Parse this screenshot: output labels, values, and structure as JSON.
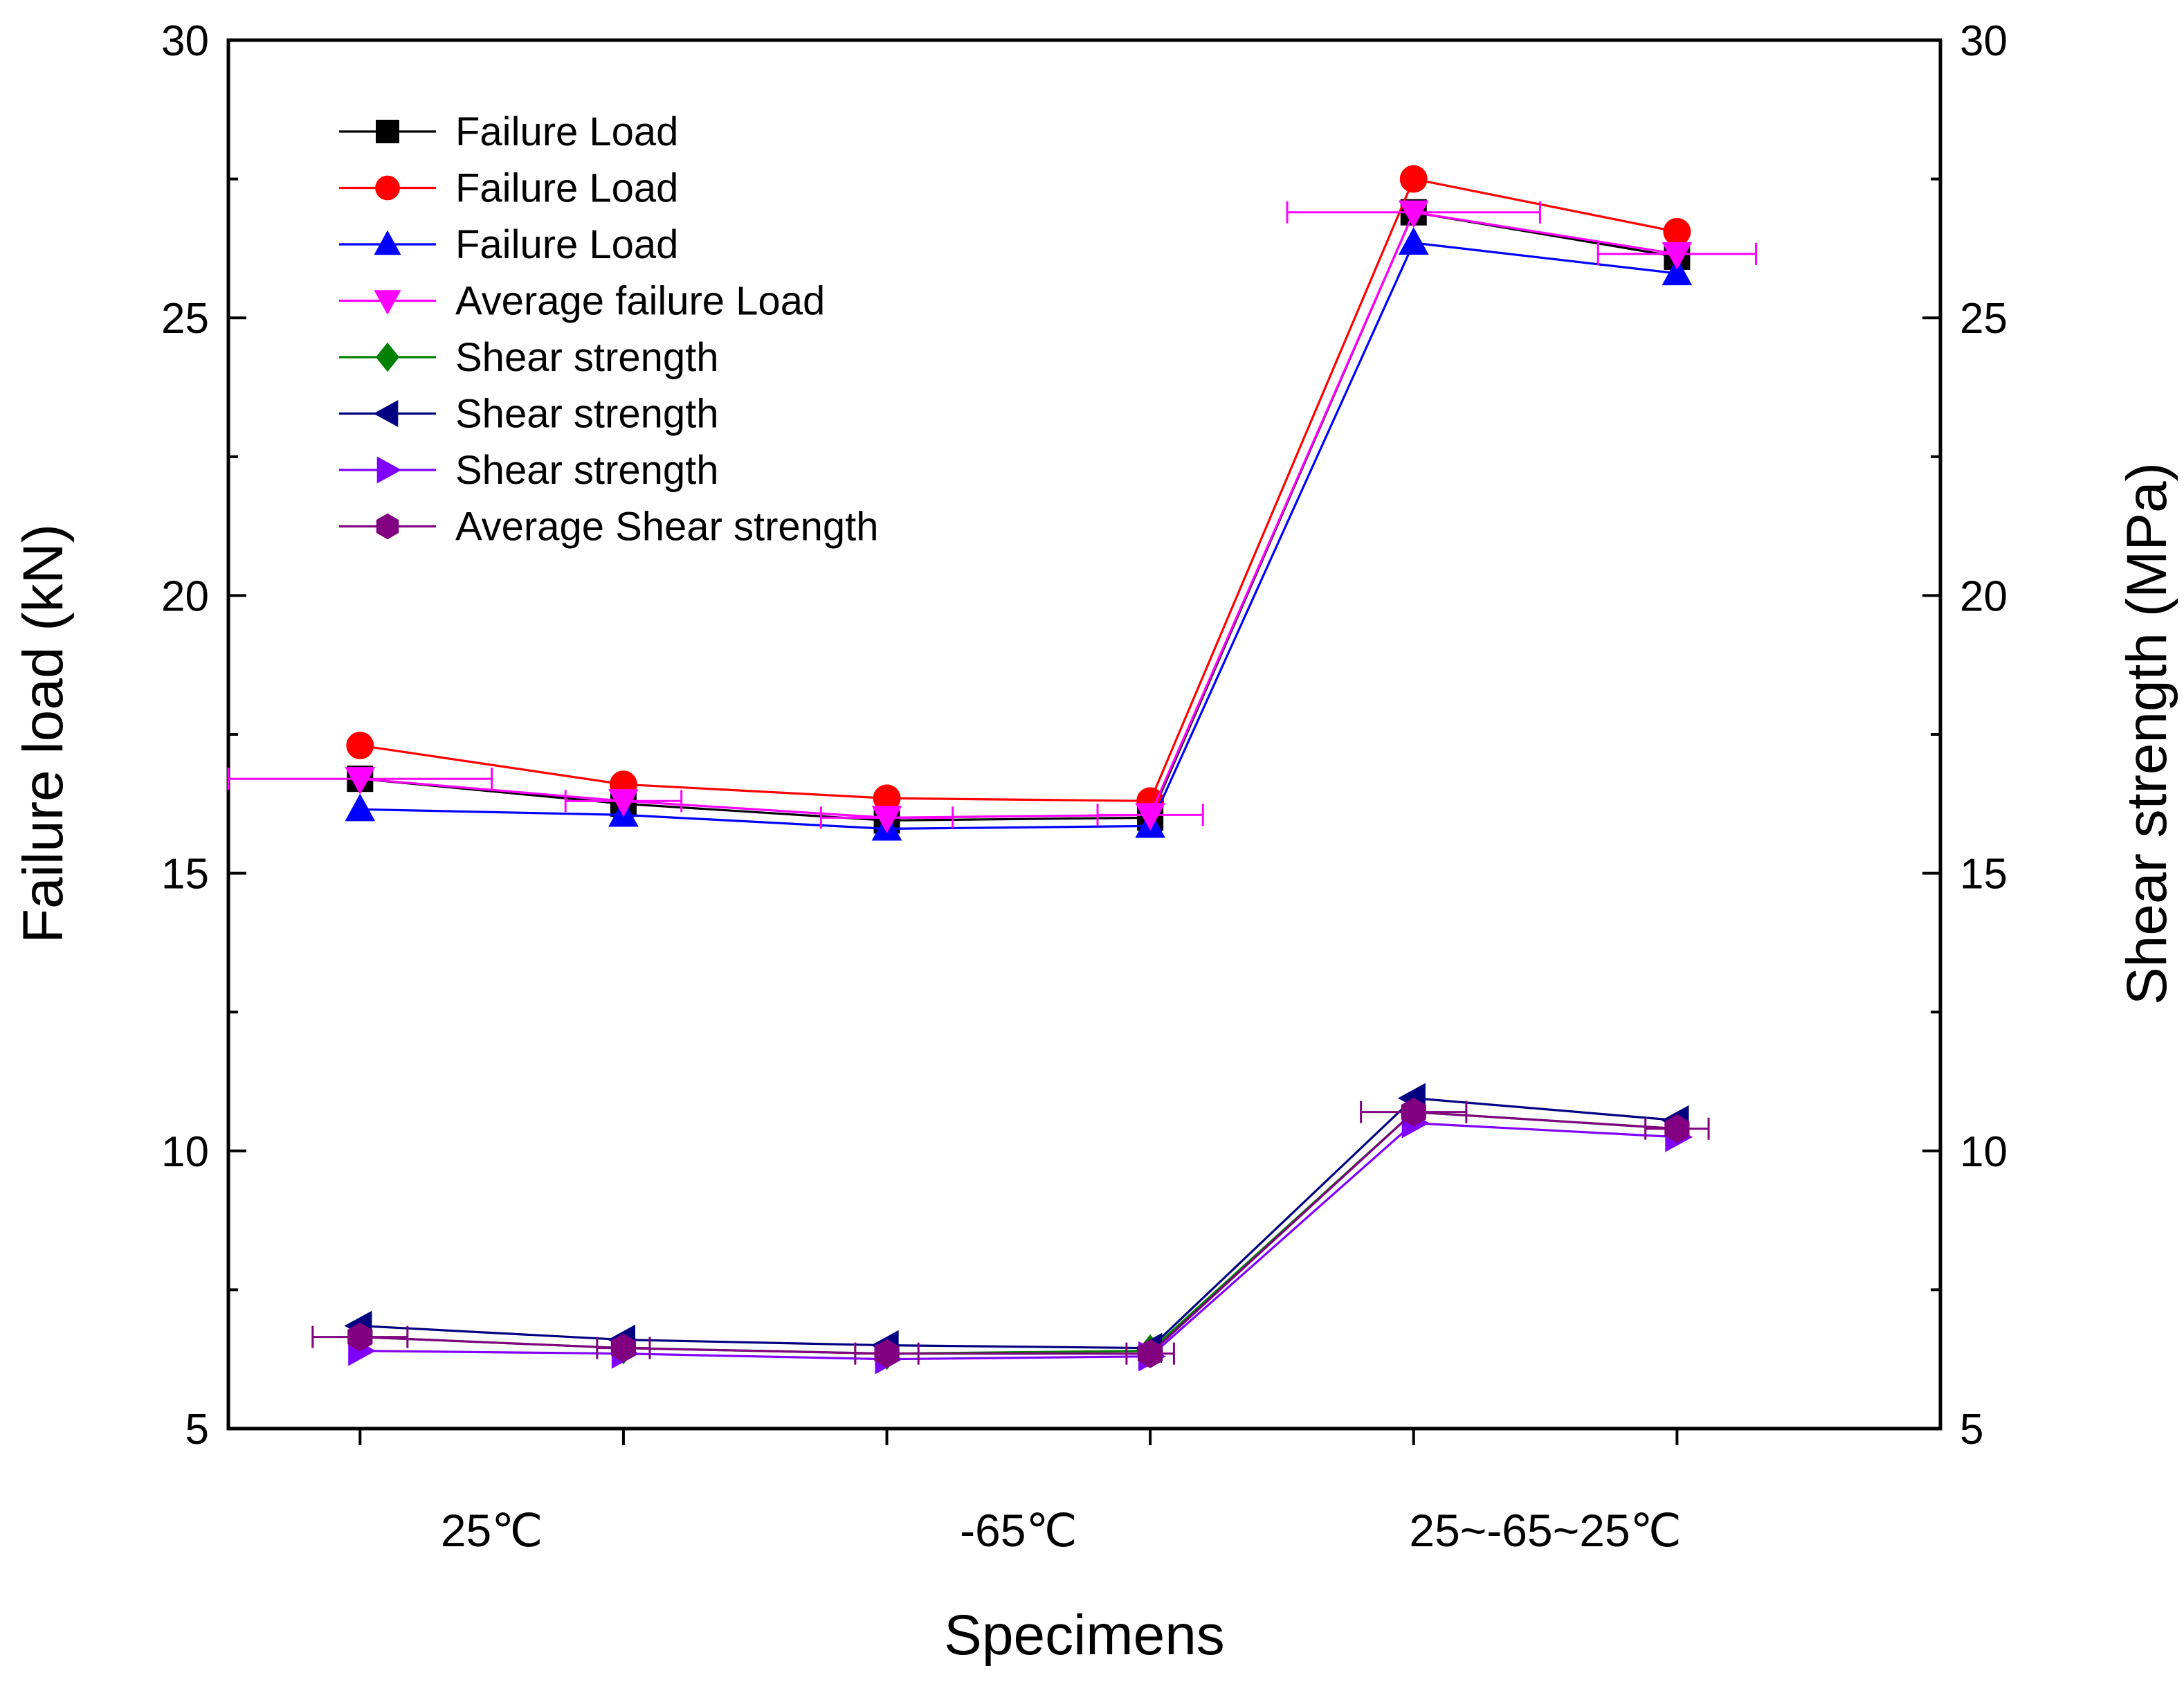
{
  "chart_data": {
    "type": "line",
    "xlabel": "Specimens",
    "ylabel_left": "Failure load (kN)",
    "ylabel_right": "Shear strength (MPa)",
    "ylim_left": [
      5,
      30
    ],
    "ylim_right": [
      5,
      30
    ],
    "yticks": [
      5,
      10,
      15,
      20,
      25,
      30
    ],
    "yticks_labels": [
      "5",
      "10",
      "15",
      "20",
      "25",
      "30"
    ],
    "x": [
      1,
      2,
      3,
      4,
      5,
      6
    ],
    "xlim": [
      0.5,
      7.0
    ],
    "category_labels": [
      {
        "label": "25℃",
        "x": 1.5
      },
      {
        "label": "-65℃",
        "x": 3.5
      },
      {
        "label": "25~-65~25℃",
        "x": 5.5
      }
    ],
    "series": [
      {
        "name": "Failure Load",
        "color": "#000000",
        "marker": "square",
        "values": [
          16.7,
          16.25,
          15.95,
          16.0,
          26.9,
          26.1
        ]
      },
      {
        "name": "Failure Load",
        "color": "#ff0000",
        "marker": "circle",
        "values": [
          17.3,
          16.6,
          16.35,
          16.3,
          27.5,
          26.55
        ]
      },
      {
        "name": "Failure Load",
        "color": "#0000ff",
        "marker": "triangle-up",
        "values": [
          16.15,
          16.05,
          15.8,
          15.85,
          26.35,
          25.8
        ]
      },
      {
        "name": "Average failure Load",
        "color": "#ff00ff",
        "marker": "triangle-down",
        "values": [
          16.7,
          16.3,
          16.0,
          16.05,
          26.9,
          26.15
        ],
        "error_x": [
          0.5,
          0.22,
          0.25,
          0.2,
          0.48,
          0.3
        ]
      },
      {
        "name": "Shear strength",
        "color": "#008000",
        "marker": "diamond",
        "values": [
          6.65,
          6.45,
          6.35,
          6.4,
          10.7,
          10.4
        ]
      },
      {
        "name": "Shear strength",
        "color": "#000080",
        "marker": "triangle-left",
        "values": [
          6.85,
          6.6,
          6.5,
          6.45,
          10.95,
          10.55
        ]
      },
      {
        "name": "Shear strength",
        "color": "#8000ff",
        "marker": "triangle-right",
        "values": [
          6.4,
          6.35,
          6.25,
          6.3,
          10.5,
          10.25
        ]
      },
      {
        "name": "Average Shear strength",
        "color": "#800080",
        "marker": "hexagon",
        "values": [
          6.65,
          6.45,
          6.35,
          6.35,
          10.7,
          10.4
        ],
        "error_x": [
          0.18,
          0.1,
          0.12,
          0.09,
          0.2,
          0.12
        ]
      }
    ],
    "legend_position": "top-left"
  }
}
